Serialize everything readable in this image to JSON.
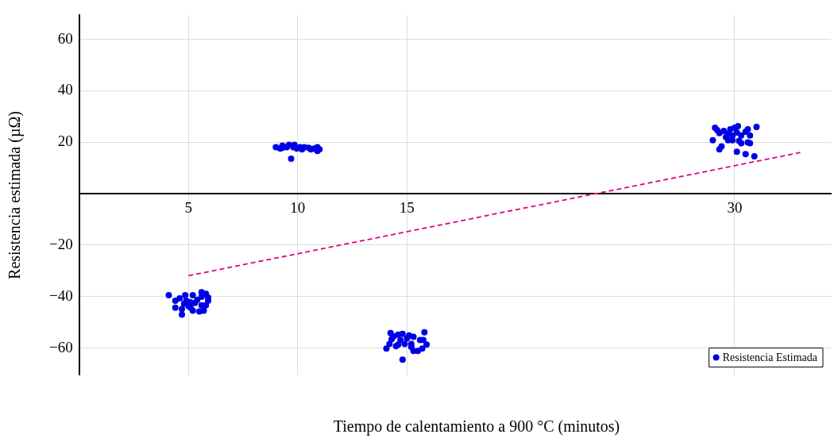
{
  "chart_data": {
    "type": "scatter",
    "xlabel": "Tiempo de calentamiento a 900 °C (minutos)",
    "ylabel": "Resistencia estimada (µΩ)",
    "xlim": [
      0,
      34.4
    ],
    "ylim": [
      -70.5,
      69.3
    ],
    "xticks": [
      5,
      10,
      15,
      30
    ],
    "yticks": [
      -60,
      -40,
      -20,
      20,
      40,
      60
    ],
    "grid": true,
    "legend": "bottom right",
    "marker": "circle",
    "series": [
      {
        "name": "Resistencia Estimada",
        "color": "#0000e6",
        "x": [
          4.1,
          4.4,
          4.4,
          4.6,
          4.7,
          4.7,
          4.8,
          4.85,
          4.9,
          5,
          5.08,
          5.2,
          5.2,
          5.3,
          5.4,
          5.5,
          5.6,
          5.6,
          5.7,
          5.8,
          5.8,
          5.9,
          5.9,
          5.1,
          5.6,
          14.06,
          14.2,
          14.25,
          14.3,
          14.4,
          14.5,
          14.6,
          14.7,
          14.8,
          14.8,
          14.9,
          15,
          15.1,
          15.2,
          15.3,
          15.3,
          15.5,
          15.6,
          15.7,
          15.8,
          15.9,
          15.75,
          14.6,
          15.2,
          9,
          9.2,
          9.3,
          9.5,
          9.6,
          9.7,
          9.8,
          9.85,
          9.96,
          10.1,
          10.2,
          10.3,
          10.5,
          10.6,
          10.75,
          10.9,
          10.9,
          11,
          9.3,
          29.1,
          29,
          29.2,
          29.3,
          29.3,
          29.4,
          29.5,
          29.6,
          29.7,
          29.7,
          29.8,
          29.9,
          29.9,
          30,
          30.1,
          30.1,
          30.15,
          30.2,
          30.3,
          30.3,
          30.5,
          30.6,
          30.6,
          30.7,
          30.7,
          30.5,
          30.9,
          31
        ],
        "values": [
          -39.5,
          -44.3,
          -41.6,
          -40.7,
          -47,
          -44.9,
          -42.8,
          -39.5,
          -41.6,
          -43.7,
          -42.2,
          -45.5,
          -39.5,
          -42.5,
          -41.3,
          -45.8,
          -40.1,
          -43.4,
          -45.5,
          -38.9,
          -43.4,
          -41.6,
          -40.4,
          -44.3,
          -38.3,
          -60.2,
          -58.4,
          -54.2,
          -56.6,
          -55.4,
          -59.3,
          -54.8,
          -56.9,
          -64.5,
          -54.5,
          -58.4,
          -56.3,
          -55.1,
          -59.6,
          -55.7,
          -61.1,
          -61.1,
          -56.9,
          -60.2,
          -53.9,
          -58.7,
          -56.9,
          -58.7,
          -58.4,
          18.1,
          17.5,
          18.7,
          18.1,
          19,
          13.6,
          18.1,
          19,
          17.5,
          18.1,
          17.2,
          18.1,
          17.8,
          17.2,
          17.5,
          16.6,
          18.1,
          17.2,
          17.8,
          25.6,
          20.8,
          24.7,
          23.5,
          17.2,
          18.4,
          24.4,
          22,
          23.2,
          20.8,
          25,
          22.6,
          20.8,
          25.6,
          23.8,
          16.3,
          26.2,
          20.5,
          22.6,
          19.6,
          24.1,
          19.9,
          25,
          22.6,
          19.6,
          15.4,
          14.5,
          25.9
        ]
      },
      {
        "type": "line",
        "color": "#e6007e",
        "line_style": "dashed",
        "marker": "none",
        "x": [
          5,
          33
        ],
        "values": [
          -31.9,
          16
        ]
      }
    ]
  }
}
